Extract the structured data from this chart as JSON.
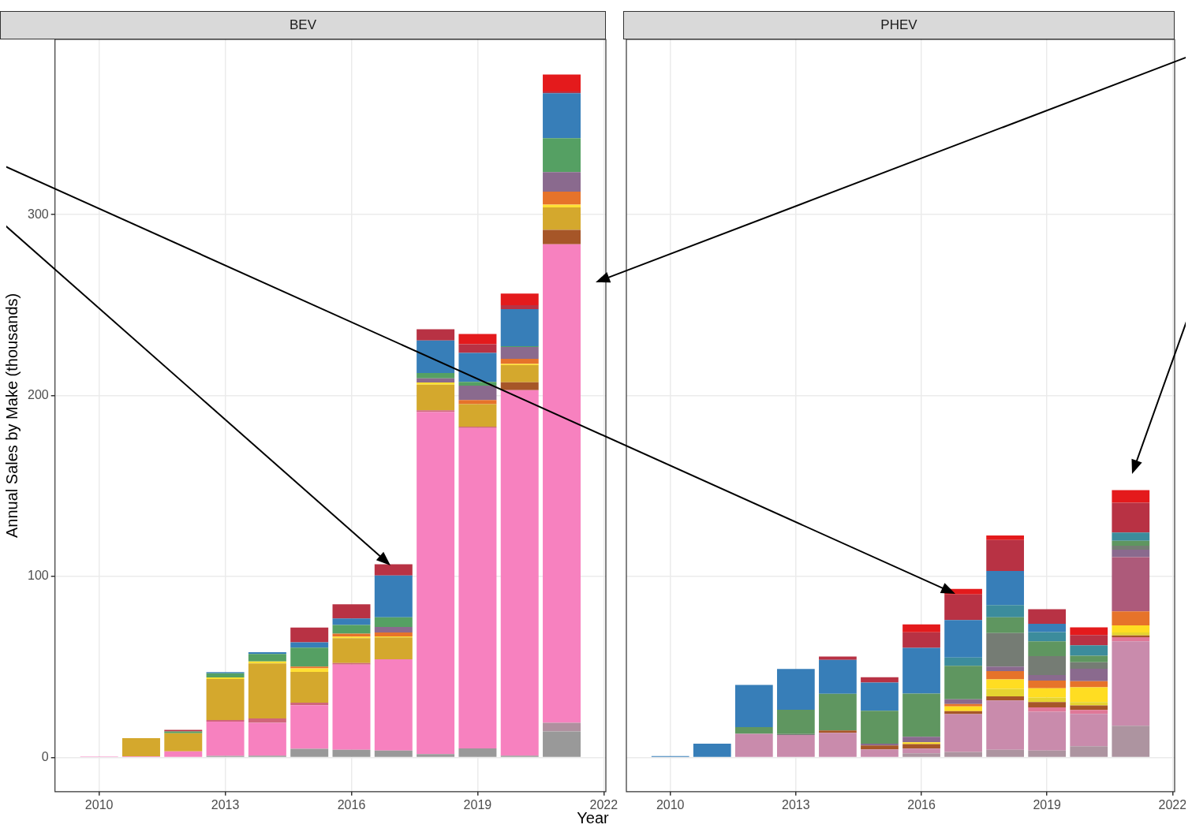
{
  "chart_data": [
    {
      "type": "bar",
      "title": "BEV",
      "xlabel": "Year",
      "ylabel": "Annual Sales by Make (thousands)",
      "stacked": true,
      "grid": true,
      "legend": false,
      "x": [
        2010,
        2011,
        2012,
        2013,
        2014,
        2015,
        2016,
        2017,
        2018,
        2019,
        2020,
        2021
      ],
      "xlim": [
        2008.95,
        2022.05
      ],
      "xticks": [
        2010,
        2013,
        2016,
        2019,
        2022
      ],
      "ylim": [
        -18.9,
        396.8
      ],
      "yticks": [
        0,
        100,
        200,
        300
      ],
      "series": [
        {
          "color": "#999999",
          "values": [
            null,
            null,
            null,
            0.8,
            1,
            4.8,
            4.2,
            3.8,
            1.8,
            5,
            1,
            14.3
          ]
        },
        {
          "color": "#b0909f",
          "values": [
            null,
            null,
            null,
            null,
            null,
            null,
            null,
            null,
            null,
            null,
            null,
            4.9
          ]
        },
        {
          "color": "#f781bf",
          "values": [
            0.5,
            0.6,
            3.4,
            19,
            18.2,
            24,
            47.1,
            50.4,
            189.1,
            177,
            202,
            264.4
          ]
        },
        {
          "color": "#d0667a",
          "values": [
            null,
            null,
            null,
            0.9,
            2.3,
            1.5,
            0.9,
            null,
            0.9,
            0.8,
            null,
            null
          ]
        },
        {
          "color": "#a65628",
          "values": [
            null,
            null,
            null,
            null,
            null,
            null,
            null,
            null,
            null,
            null,
            4.3,
            8
          ]
        },
        {
          "color": "#d4a82d",
          "values": [
            null,
            10,
            10,
            22.6,
            30.4,
            17,
            13.7,
            12.1,
            14.2,
            12.4,
            9.5,
            12.4
          ]
        },
        {
          "color": "#ffe033",
          "values": [
            null,
            null,
            null,
            0.9,
            1.1,
            1.9,
            0.9,
            0.6,
            1.2,
            null,
            0.6,
            1.5
          ]
        },
        {
          "color": "#e6732a",
          "values": [
            null,
            null,
            null,
            null,
            null,
            1,
            1.6,
            2.1,
            null,
            2.3,
            2.9,
            7.2
          ]
        },
        {
          "color": "#8a6a8e",
          "values": [
            null,
            null,
            null,
            null,
            null,
            null,
            null,
            3.1,
            2.3,
            8,
            6.5,
            10.8
          ]
        },
        {
          "color": "#55a063",
          "values": [
            null,
            null,
            1,
            2.3,
            4.2,
            10.5,
            4.8,
            5.3,
            2.9,
            2,
            0.5,
            18.7
          ]
        },
        {
          "color": "#377eb8",
          "values": [
            null,
            null,
            null,
            0.6,
            1,
            2.9,
            3.6,
            23.1,
            18,
            16.1,
            20.4,
            24.8
          ]
        },
        {
          "color": "#b83244",
          "values": [
            null,
            null,
            0.8,
            null,
            null,
            8.2,
            7.8,
            6.3,
            6.2,
            4.8,
            2.2,
            1
          ]
        },
        {
          "color": "#e41a1c",
          "values": [
            null,
            null,
            null,
            null,
            null,
            null,
            null,
            null,
            null,
            5.6,
            6.4,
            9.4
          ]
        }
      ]
    },
    {
      "type": "bar",
      "title": "PHEV",
      "stacked": true,
      "grid": true,
      "legend": false,
      "tick_labels": "x",
      "x": [
        2010,
        2011,
        2012,
        2013,
        2014,
        2015,
        2016,
        2017,
        2018,
        2019,
        2020,
        2021
      ],
      "xlim": [
        2008.95,
        2022.05
      ],
      "xticks": [
        2010,
        2013,
        2016,
        2019,
        2022
      ],
      "ylim": [
        -18.9,
        396.8
      ],
      "yticks": [
        0,
        100,
        200,
        300
      ],
      "series": [
        {
          "color": "#ad94a0",
          "values": [
            null,
            null,
            null,
            null,
            null,
            null,
            2.3,
            3,
            4.2,
            3.8,
            6.2,
            17.5
          ]
        },
        {
          "color": "#c98bac",
          "values": [
            null,
            null,
            13.1,
            12.4,
            13.6,
            4.4,
            2.6,
            20.9,
            27.3,
            21.4,
            17.8,
            46.6
          ]
        },
        {
          "color": "#e07898",
          "values": [
            null,
            null,
            null,
            null,
            null,
            null,
            null,
            null,
            null,
            2.5,
            2.2,
            2.3
          ]
        },
        {
          "color": "#a65628",
          "values": [
            null,
            null,
            null,
            null,
            1.3,
            2.2,
            2.5,
            1.7,
            2.2,
            2.9,
            2.5,
            1
          ]
        },
        {
          "color": "#e5d430",
          "values": [
            null,
            null,
            null,
            null,
            null,
            null,
            null,
            null,
            4.2,
            2.5,
            1.9,
            1.7
          ]
        },
        {
          "color": "#ffdd22",
          "values": [
            null,
            null,
            null,
            null,
            null,
            null,
            1,
            2.6,
            5.2,
            5.1,
            8.2,
            3.9
          ]
        },
        {
          "color": "#e6732a",
          "values": [
            null,
            null,
            null,
            null,
            null,
            null,
            null,
            1.3,
            4.6,
            4.3,
            3.3,
            7.7
          ]
        },
        {
          "color": "#ad5a7a",
          "values": [
            null,
            null,
            null,
            null,
            null,
            null,
            null,
            null,
            null,
            null,
            null,
            30
          ]
        },
        {
          "color": "#8a6a8e",
          "values": [
            null,
            null,
            null,
            null,
            null,
            1,
            3,
            2.6,
            2.5,
            3,
            6.9,
            4.1
          ]
        },
        {
          "color": "#757c74",
          "values": [
            null,
            null,
            null,
            0.5,
            null,
            null,
            null,
            null,
            18.5,
            10.5,
            3.6,
            2.2
          ]
        },
        {
          "color": "#5f9660",
          "values": [
            null,
            null,
            3.6,
            13.4,
            20.3,
            18.2,
            23.9,
            18.5,
            8.7,
            8.1,
            3.6,
            2.7
          ]
        },
        {
          "color": "#3c8c9c",
          "values": [
            null,
            null,
            null,
            null,
            null,
            null,
            null,
            4.6,
            6.8,
            5.2,
            5.8,
            4.6
          ]
        },
        {
          "color": "#377eb8",
          "values": [
            0.7,
            7.6,
            23.4,
            22.6,
            18.7,
            15.6,
            25.2,
            20.7,
            18.8,
            4.6,
            null,
            null
          ]
        },
        {
          "color": "#b83244",
          "values": [
            null,
            null,
            null,
            null,
            1.9,
            2.9,
            8.7,
            14.2,
            17.1,
            8,
            5.6,
            16.5
          ]
        },
        {
          "color": "#e41a1c",
          "values": [
            null,
            null,
            null,
            null,
            null,
            null,
            4.3,
            3,
            2.6,
            null,
            4.3,
            6.9
          ]
        }
      ]
    }
  ]
}
